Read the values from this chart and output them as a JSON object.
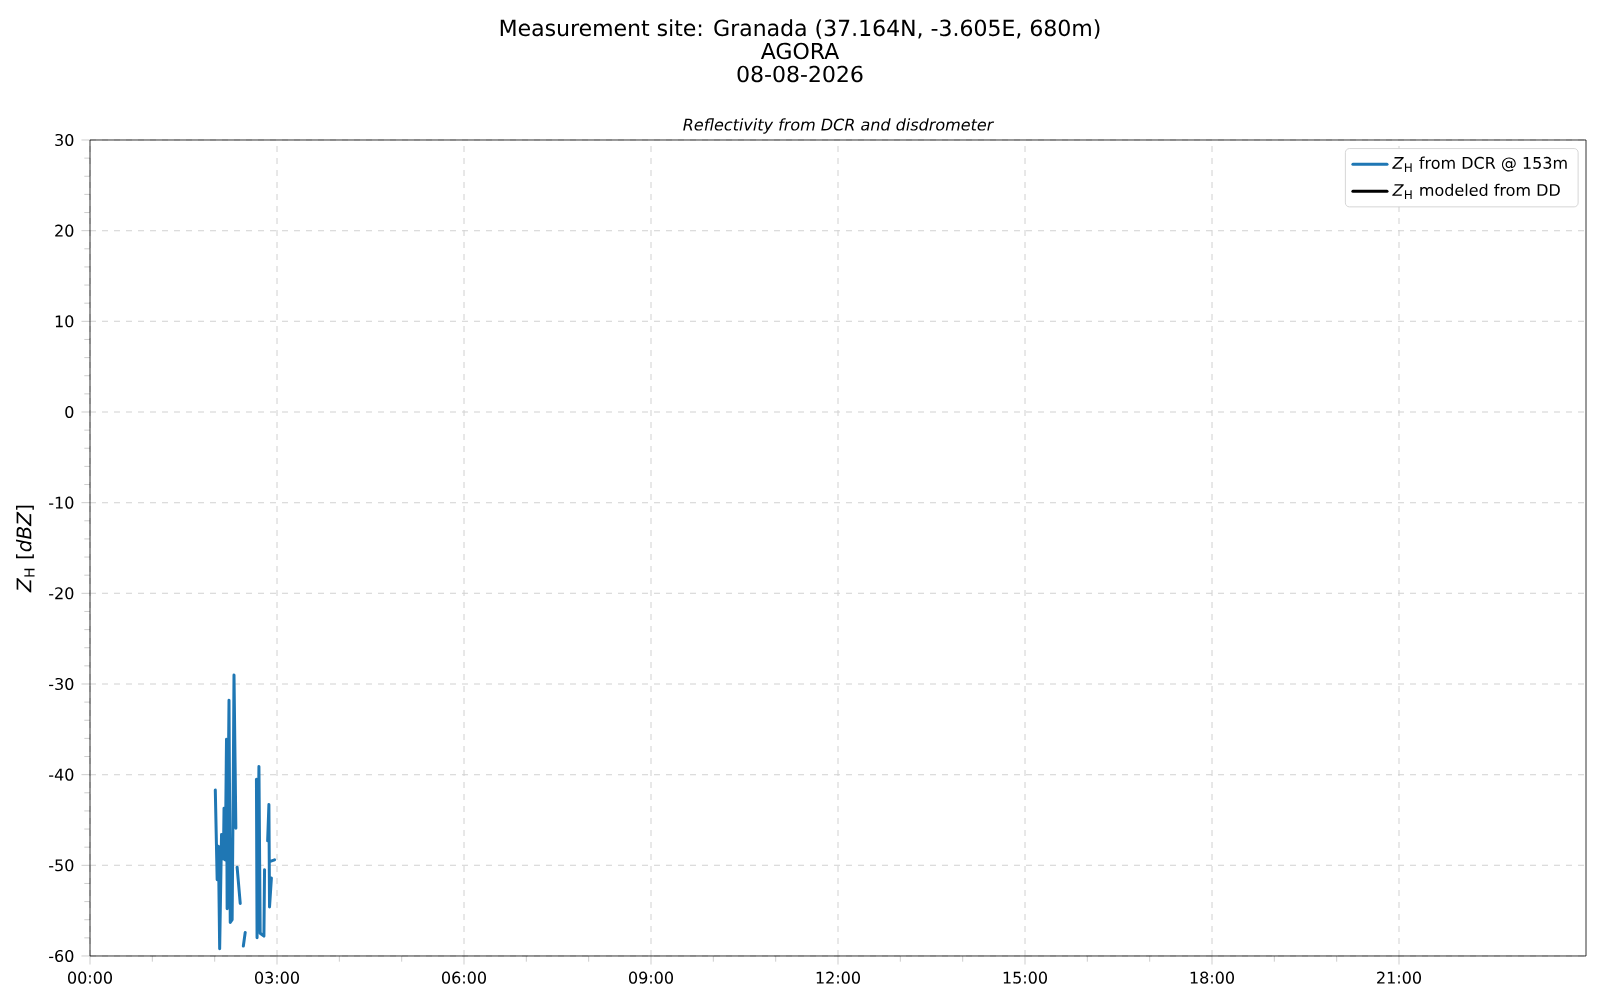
{
  "chart_data": {
    "type": "line",
    "title": "Measurement site: Granada (37.164N, -3.605E, 680m)",
    "annotations": [
      "AGORA",
      "08-08-2026"
    ],
    "subtitle": "Reflectivity from DCR and disdrometer",
    "ylabel": "*Z*$_{H}$ [*dBZ*]",
    "xlim": [
      0,
      24
    ],
    "ylim": [
      -60,
      30
    ],
    "xticks": [
      {
        "value": 0,
        "label": "00:00"
      },
      {
        "value": 3,
        "label": "03:00"
      },
      {
        "value": 6,
        "label": "06:00"
      },
      {
        "value": 9,
        "label": "09:00"
      },
      {
        "value": 12,
        "label": "12:00"
      },
      {
        "value": 15,
        "label": "15:00"
      },
      {
        "value": 18,
        "label": "18:00"
      },
      {
        "value": 21,
        "label": "21:00"
      }
    ],
    "yticks": [
      -60,
      -50,
      -40,
      -30,
      -20,
      -10,
      0,
      10,
      20,
      30
    ],
    "grid": true,
    "legend": "top right",
    "series": [
      {
        "name": "*Z*$_{H}$ from DCR @ 153m",
        "color": "#1f77b4",
        "x": [
          2.01,
          2.04,
          2.06,
          2.08,
          2.11,
          2.14,
          2.15,
          2.17,
          2.19,
          2.2,
          2.23,
          2.25,
          2.28,
          2.3,
          2.31,
          2.34,
          null,
          2.36,
          2.41,
          null,
          2.46,
          2.49,
          null,
          2.67,
          2.68,
          2.71,
          2.73,
          2.79,
          2.8,
          null,
          2.85,
          2.87,
          2.88,
          2.91,
          null,
          2.88,
          2.96
        ],
        "values": [
          -41.7,
          -51.6,
          -47.9,
          -59.2,
          -46.6,
          -49.3,
          -43.7,
          -49.4,
          -36.1,
          -54.8,
          -31.8,
          -56.3,
          -56.0,
          -39.1,
          -29.0,
          -45.9,
          null,
          -50.2,
          -54.2,
          null,
          -58.9,
          -57.4,
          null,
          -40.5,
          -58.0,
          -39.1,
          -57.5,
          -57.8,
          -50.5,
          null,
          -47.3,
          -43.3,
          -54.6,
          -51.4,
          null,
          -49.6,
          -49.4
        ]
      },
      {
        "name": "*Z*$_{H}$ modeled from DD",
        "color": "#000000"
      }
    ]
  }
}
